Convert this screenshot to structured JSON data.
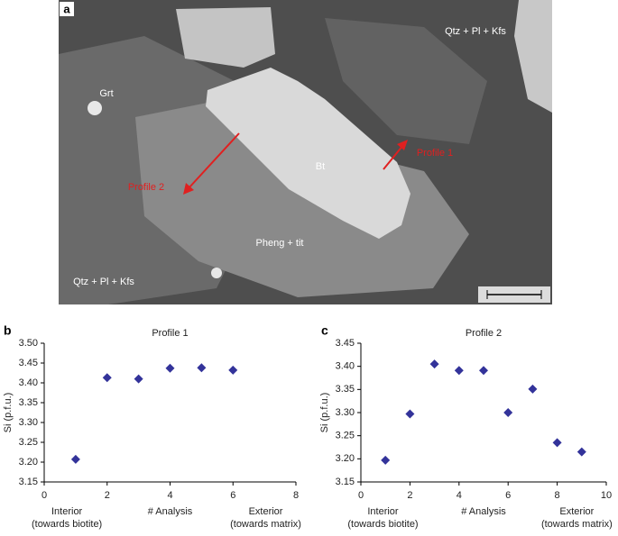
{
  "micrograph": {
    "panel_label": "a",
    "labels": [
      "Qtz + Pl + Kfs",
      "Grt",
      "Bt",
      "Profile 1",
      "Profile 2",
      "Pheng + tit",
      "Qtz + Pl + Kfs"
    ]
  },
  "chart_data": [
    {
      "type": "scatter",
      "panel_label": "b",
      "title": "Profile 1",
      "x_label": "# Analysis",
      "y_label": "Si (p.f.u.)",
      "x_start_label": [
        "Interior",
        "(towards biotite)"
      ],
      "x_end_label": [
        "Exterior",
        "(towards matrix)"
      ],
      "color": "#33339a",
      "x": [
        1,
        2,
        3,
        4,
        5,
        6
      ],
      "values": [
        3.207,
        3.413,
        3.41,
        3.437,
        3.438,
        3.432
      ],
      "xlim": [
        0,
        8
      ],
      "xticks": [
        0,
        2,
        4,
        6,
        8
      ],
      "ylim": [
        3.15,
        3.5
      ],
      "yticks": [
        3.15,
        {
          "value": 3.2,
          "label": "3.20"
        },
        3.25,
        {
          "value": 3.3,
          "label": "3.30"
        },
        3.35,
        {
          "value": 3.4,
          "label": "3.40"
        },
        3.45,
        {
          "value": 3.5,
          "label": "3.50"
        }
      ],
      "grid": false
    },
    {
      "type": "scatter",
      "panel_label": "c",
      "title": "Profile 2",
      "x_label": "# Analysis",
      "y_label": "Si (p.f.u.)",
      "x_start_label": [
        "Interior",
        "(towards biotite)"
      ],
      "x_end_label": [
        "Exterior",
        "(towards matrix)"
      ],
      "color": "#33339a",
      "x": [
        1,
        2,
        3,
        4,
        5,
        6,
        7,
        8,
        9
      ],
      "values": [
        3.197,
        3.297,
        3.405,
        3.391,
        3.391,
        3.3,
        3.351,
        3.235,
        3.215
      ],
      "xlim": [
        0,
        10
      ],
      "xticks": [
        0,
        2,
        4,
        6,
        8,
        10
      ],
      "ylim": [
        3.15,
        3.45
      ],
      "yticks": [
        3.15,
        {
          "value": 3.2,
          "label": "3.20"
        },
        3.25,
        {
          "value": 3.3,
          "label": "3.30"
        },
        3.35,
        {
          "value": 3.4,
          "label": "3.40"
        },
        3.45
      ],
      "grid": false
    }
  ]
}
